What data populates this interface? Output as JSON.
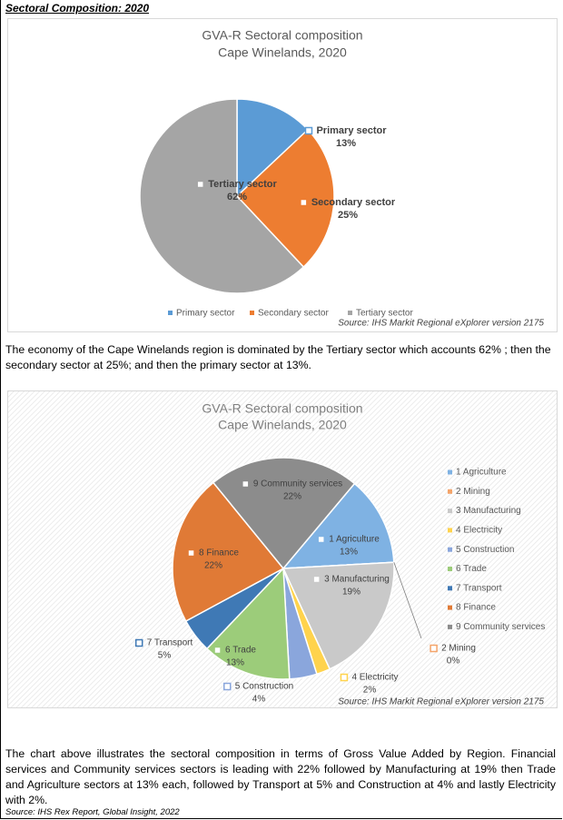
{
  "heading": "Sectoral Composition: 2020",
  "chart_data": [
    {
      "type": "pie",
      "title": "GVA-R Sectoral composition",
      "subtitle": "Cape Winelands, 2020",
      "categories": [
        "Primary sector",
        "Secondary sector",
        "Tertiary sector"
      ],
      "values": [
        13,
        25,
        62
      ],
      "value_labels": [
        "13%",
        "25%",
        "62%"
      ],
      "colors": [
        "#5b9bd5",
        "#ed7d31",
        "#a5a5a5"
      ],
      "legend": "bottom",
      "source": "Source: IHS Markit Regional eXplorer version 2175"
    },
    {
      "type": "pie",
      "title": "GVA-R Sectoral composition",
      "subtitle": "Cape Winelands, 2020",
      "categories": [
        "1 Agriculture",
        "2 Mining",
        "3 Manufacturing",
        "4 Electricity",
        "5 Construction",
        "6 Trade",
        "7 Transport",
        "8 Finance",
        "9 Community services"
      ],
      "values": [
        13,
        0,
        19,
        2,
        4,
        13,
        5,
        22,
        22
      ],
      "value_labels": [
        "13%",
        "0%",
        "19%",
        "2%",
        "4%",
        "13%",
        "5%",
        "22%",
        "22%"
      ],
      "colors": [
        "#7fb2e3",
        "#f4a46a",
        "#c9c9c9",
        "#ffd34d",
        "#8aa6dc",
        "#9ccc7a",
        "#3f79b5",
        "#e07a36",
        "#8c8c8c"
      ],
      "legend": "right",
      "source": "Source: IHS Markit Regional eXplorer version 2175"
    }
  ],
  "paragraphs": [
    "The economy of the Cape Winelands region is dominated by the Tertiary sector which accounts 62% ; then the secondary sector at 25%; and then the primary sector at 13%.",
    "The chart above illustrates the sectoral composition in terms of Gross Value Added by Region. Financial services and Community services sectors is leading with 22% followed by Manufacturing at 19% then Trade and Agriculture sectors at 13% each, followed by Transport at 5% and Construction at 4% and lastly Electricity with 2%."
  ],
  "source": "Source: IHS Rex Report, Global Insight, 2022"
}
